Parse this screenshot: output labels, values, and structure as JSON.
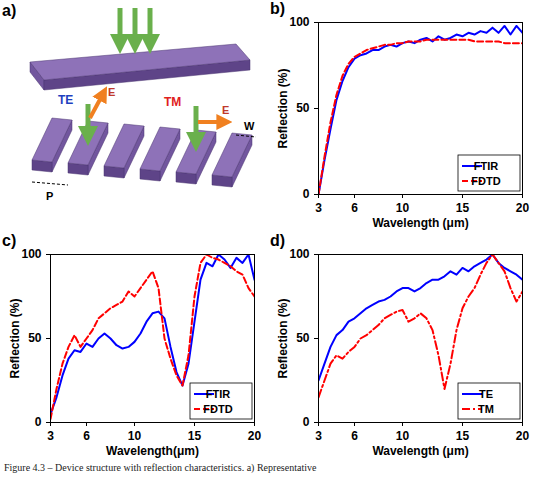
{
  "chart_data": [
    {
      "type": "line",
      "panel_label": "b)",
      "x_label": "Wavelength (μm)",
      "y_label": "Reflection (%)",
      "x": [
        3,
        3.5,
        4,
        4.5,
        5,
        5.5,
        6,
        6.5,
        7,
        7.5,
        8,
        8.5,
        9,
        9.5,
        10,
        10.5,
        11,
        11.5,
        12,
        12.5,
        13,
        13.5,
        14,
        14.5,
        15,
        15.5,
        16,
        16.5,
        17,
        17.5,
        18,
        18.5,
        19,
        19.5,
        20
      ],
      "series": [
        {
          "name": "FTIR",
          "color": "#0000ff",
          "line_style": "solid",
          "values": [
            0,
            20,
            38,
            55,
            66,
            74,
            79,
            81,
            82,
            84,
            84,
            86,
            87,
            86,
            88,
            89,
            88,
            90,
            91,
            89,
            92,
            90,
            91,
            93,
            92,
            94,
            93,
            95,
            94,
            97,
            94,
            98,
            93,
            98,
            94
          ]
        },
        {
          "name": "FDTD",
          "color": "#ff0000",
          "line_style": "dashed",
          "values": [
            0,
            22,
            42,
            58,
            69,
            76,
            80,
            82,
            84,
            85,
            86,
            87,
            87,
            88,
            88,
            89,
            89,
            89,
            90,
            90,
            90,
            90,
            90,
            90,
            90,
            90,
            89,
            89,
            89,
            89,
            89,
            88,
            88,
            88,
            88
          ]
        }
      ],
      "xlim": [
        3,
        20
      ],
      "xticks": [
        3,
        6,
        10,
        15,
        20
      ],
      "ylim": [
        0,
        100
      ],
      "yticks": [
        0,
        50,
        100
      ],
      "grid": false,
      "legend": "lower right"
    },
    {
      "type": "line",
      "panel_label": "c)",
      "x_label": "Wavelength(μm)",
      "y_label": "Reflection (%)",
      "x": [
        3,
        3.5,
        4,
        4.5,
        5,
        5.5,
        6,
        6.5,
        7,
        7.5,
        8,
        8.5,
        9,
        9.5,
        10,
        10.5,
        11,
        11.5,
        12,
        12.5,
        13,
        13.5,
        14,
        14.5,
        15,
        15.5,
        16,
        16.5,
        17,
        17.5,
        18,
        18.5,
        19,
        19.5,
        20
      ],
      "series": [
        {
          "name": "FTIR",
          "color": "#0000ff",
          "line_style": "solid",
          "values": [
            5,
            15,
            28,
            38,
            43,
            42,
            47,
            45,
            50,
            53,
            50,
            46,
            44,
            45,
            48,
            53,
            60,
            65,
            66,
            62,
            45,
            30,
            22,
            35,
            60,
            85,
            95,
            93,
            100,
            97,
            92,
            98,
            95,
            100,
            85
          ]
        },
        {
          "name": "FDTD",
          "color": "#ff0000",
          "line_style": "dashed",
          "values": [
            2,
            20,
            35,
            45,
            52,
            45,
            50,
            55,
            62,
            65,
            68,
            70,
            72,
            78,
            75,
            80,
            85,
            90,
            80,
            50,
            38,
            28,
            22,
            40,
            75,
            95,
            100,
            98,
            97,
            95,
            93,
            90,
            88,
            80,
            75
          ]
        }
      ],
      "xlim": [
        3,
        20
      ],
      "xticks": [
        3,
        6,
        10,
        15,
        20
      ],
      "ylim": [
        0,
        100
      ],
      "yticks": [
        0,
        50,
        100
      ],
      "grid": false,
      "legend": "lower right"
    },
    {
      "type": "line",
      "panel_label": "d)",
      "x_label": "Wavelength (μm)",
      "y_label": "Reflection (%)",
      "x": [
        3,
        3.5,
        4,
        4.5,
        5,
        5.5,
        6,
        6.5,
        7,
        7.5,
        8,
        8.5,
        9,
        9.5,
        10,
        10.5,
        11,
        11.5,
        12,
        12.5,
        13,
        13.5,
        14,
        14.5,
        15,
        15.5,
        16,
        16.5,
        17,
        17.5,
        18,
        18.5,
        19,
        19.5,
        20
      ],
      "series": [
        {
          "name": "TE",
          "color": "#0000ff",
          "line_style": "solid",
          "values": [
            25,
            35,
            45,
            52,
            55,
            60,
            62,
            65,
            68,
            70,
            72,
            73,
            75,
            78,
            80,
            80,
            78,
            80,
            83,
            85,
            85,
            87,
            90,
            88,
            92,
            90,
            93,
            95,
            97,
            100,
            95,
            92,
            90,
            88,
            85
          ]
        },
        {
          "name": "TM",
          "color": "#ff0000",
          "line_style": "dashdot",
          "values": [
            15,
            25,
            35,
            40,
            38,
            42,
            45,
            50,
            52,
            55,
            58,
            62,
            64,
            66,
            67,
            60,
            62,
            65,
            62,
            55,
            40,
            20,
            35,
            55,
            68,
            75,
            80,
            88,
            95,
            100,
            95,
            90,
            80,
            72,
            78
          ]
        }
      ],
      "xlim": [
        3,
        20
      ],
      "xticks": [
        3,
        6,
        10,
        15,
        20
      ],
      "ylim": [
        0,
        100
      ],
      "yticks": [
        0,
        50,
        100
      ],
      "grid": false,
      "legend": "lower right"
    }
  ],
  "diagram": {
    "panel_label": "a)",
    "te_label": "TE",
    "tm_label": "TM",
    "te_field": "E",
    "tm_field": "E",
    "width_label": "W",
    "period_label": "P"
  },
  "caption": "Figure 4.3 – Device structure with reflection characteristics. a) Representative"
}
